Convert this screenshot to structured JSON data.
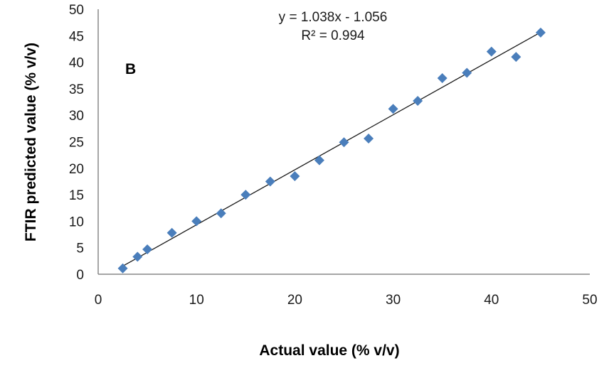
{
  "chart_data": {
    "type": "scatter",
    "title": "",
    "panel_label": "B",
    "xlabel": "Actual value (% v/v)",
    "ylabel": "FTIR predicted value (% v/v)",
    "xlim": [
      0,
      50
    ],
    "ylim": [
      0,
      50
    ],
    "x_ticks": [
      0,
      10,
      20,
      30,
      40,
      50
    ],
    "y_ticks": [
      0,
      5,
      10,
      15,
      20,
      25,
      30,
      35,
      40,
      45,
      50
    ],
    "grid": false,
    "legend": "none",
    "series": [
      {
        "marker": "diamond",
        "color": "#4a7ebb",
        "x": [
          2.5,
          4,
          5,
          7.5,
          10,
          12.5,
          15,
          17.5,
          20,
          22.5,
          25,
          27.5,
          30,
          32.5,
          35,
          37.5,
          40,
          42.5,
          45
        ],
        "y": [
          1.1,
          3.3,
          4.7,
          7.8,
          10.0,
          11.5,
          15.0,
          17.5,
          18.5,
          21.5,
          24.9,
          25.6,
          31.2,
          32.7,
          37.0,
          38.0,
          42.0,
          41.0,
          45.6
        ]
      }
    ],
    "trendline": {
      "slope": 1.038,
      "intercept": -1.056,
      "x_range": [
        2.5,
        45
      ],
      "color": "#1a1a1a"
    },
    "annotations": {
      "equation": "y = 1.038x - 1.056",
      "r_squared": "R² = 0.994"
    }
  }
}
